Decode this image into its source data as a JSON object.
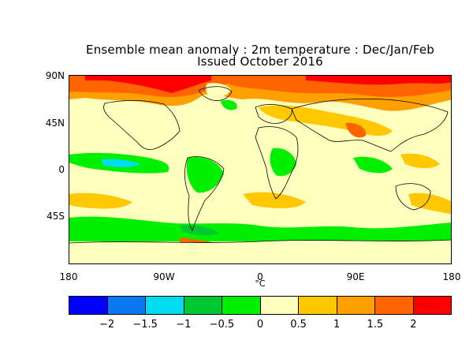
{
  "title_line1": "Ensemble mean anomaly : 2m temperature : Dec/Jan/Feb",
  "title_line2": "Issued October 2016",
  "axes": {
    "y_labels": [
      "90N",
      "45N",
      "0",
      "45S"
    ],
    "x_labels": [
      "180",
      "90W",
      "0",
      "90E",
      "180"
    ],
    "unit": "°C"
  },
  "colorbar": {
    "colors": [
      "#0000ff",
      "#0a78f0",
      "#00dcf0",
      "#00c832",
      "#00f000",
      "#ffffbe",
      "#ffc800",
      "#ffa000",
      "#ff6400",
      "#ff0000"
    ],
    "labels": [
      "−2",
      "−1.5",
      "−1",
      "−0.5",
      "0",
      "0.5",
      "1",
      "1.5",
      "2"
    ]
  }
}
